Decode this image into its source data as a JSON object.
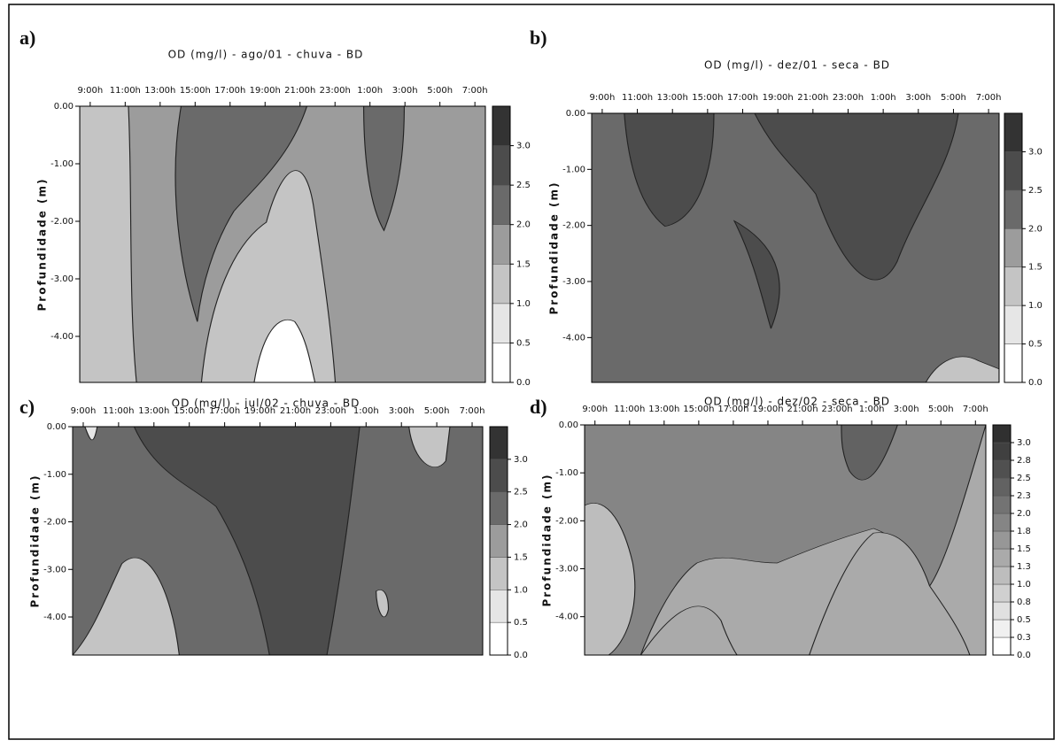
{
  "chart_data": [
    {
      "type": "contour",
      "label": "a)",
      "title": "OD (mg/l) - ago/01 - chuva - BD",
      "ylabel": "Profundidade (m)",
      "categories": [
        "9:00h",
        "11:00h",
        "13:00h",
        "15:00h",
        "17:00h",
        "19:00h",
        "21:00h",
        "23:00h",
        "1:00h",
        "3:00h",
        "5:00h",
        "7:00h"
      ],
      "ylim": [
        -4.8,
        0
      ],
      "yticks": [
        {
          "value": 0,
          "label": "0.00"
        },
        {
          "value": -1,
          "label": "-1.00"
        },
        {
          "value": -2,
          "label": "-2.00"
        },
        {
          "value": -3,
          "label": "-3.00"
        },
        {
          "value": -4,
          "label": "-4.00"
        }
      ],
      "colorbar": {
        "lim": [
          0,
          3.5
        ],
        "ticks": [
          {
            "value": 0,
            "label": "0.0"
          },
          0.5,
          {
            "value": 1,
            "label": "1.0"
          },
          1.5,
          {
            "value": 2,
            "label": "2.0"
          },
          2.5,
          {
            "value": 3,
            "label": "3.0"
          }
        ],
        "colors": [
          "#ffffff",
          "#e6e6e6",
          "#c4c4c4",
          "#9c9c9c",
          "#6a6a6a",
          "#4c4c4c",
          "#333333"
        ]
      }
    },
    {
      "type": "contour",
      "label": "b)",
      "title": "OD (mg/l)  - dez/01 - seca - BD",
      "ylabel": "Profundidade (m)",
      "categories": [
        "9:00h",
        "11:00h",
        "13:00h",
        "15:00h",
        "17:00h",
        "19:00h",
        "21:00h",
        "23:00h",
        "1:00h",
        "3:00h",
        "5:00h",
        "7:00h"
      ],
      "ylim": [
        -4.8,
        0
      ],
      "yticks": [
        {
          "value": 0,
          "label": "0.00"
        },
        {
          "value": -1,
          "label": "-1.00"
        },
        {
          "value": -2,
          "label": "-2.00"
        },
        {
          "value": -3,
          "label": "-3.00"
        },
        {
          "value": -4,
          "label": "-4.00"
        }
      ],
      "colorbar": {
        "lim": [
          0,
          3.5
        ],
        "ticks": [
          {
            "value": 0,
            "label": "0.0"
          },
          0.5,
          {
            "value": 1,
            "label": "1.0"
          },
          1.5,
          {
            "value": 2,
            "label": "2.0"
          },
          2.5,
          {
            "value": 3,
            "label": "3.0"
          }
        ],
        "colors": [
          "#ffffff",
          "#e6e6e6",
          "#c4c4c4",
          "#9c9c9c",
          "#6a6a6a",
          "#4c4c4c",
          "#333333"
        ]
      }
    },
    {
      "type": "contour",
      "label": "c)",
      "title": "OD (mg/l) - jul/02 - chuva - BD",
      "ylabel": "Profundidade (m)",
      "categories": [
        "9:00h",
        "11:00h",
        "13:00h",
        "15:00h",
        "17:00h",
        "19:00h",
        "21:00h",
        "23:00h",
        "1:00h",
        "3:00h",
        "5:00h",
        "7:00h"
      ],
      "ylim": [
        -4.8,
        0
      ],
      "yticks": [
        {
          "value": 0,
          "label": "0.00"
        },
        {
          "value": -1,
          "label": "-1.00"
        },
        {
          "value": -2,
          "label": "-2.00"
        },
        {
          "value": -3,
          "label": "-3.00"
        },
        {
          "value": -4,
          "label": "-4.00"
        }
      ],
      "colorbar": {
        "lim": [
          0,
          3.5
        ],
        "ticks": [
          {
            "value": 0,
            "label": "0.0"
          },
          0.5,
          {
            "value": 1,
            "label": "1.0"
          },
          1.5,
          {
            "value": 2,
            "label": "2.0"
          },
          2.5,
          {
            "value": 3,
            "label": "3.0"
          }
        ],
        "colors": [
          "#ffffff",
          "#e6e6e6",
          "#c4c4c4",
          "#9c9c9c",
          "#6a6a6a",
          "#4c4c4c",
          "#333333"
        ]
      }
    },
    {
      "type": "contour",
      "label": "d)",
      "title": "OD (mg/l) - dez/02 - seca - BD",
      "ylabel": "Profundidade (m)",
      "categories": [
        "9:00h",
        "11:00h",
        "13:00h",
        "15:00h",
        "17:00h",
        "19:00h",
        "21:00h",
        "23:00h",
        "1:00h",
        "3:00h",
        "5:00h",
        "7:00h"
      ],
      "ylim": [
        -4.8,
        0
      ],
      "yticks": [
        {
          "value": 0,
          "label": "0.00"
        },
        {
          "value": -1,
          "label": "-1.00"
        },
        {
          "value": -2,
          "label": "-2.00"
        },
        {
          "value": -3,
          "label": "-3.00"
        },
        {
          "value": -4,
          "label": "-4.00"
        }
      ],
      "colorbar": {
        "lim": [
          0,
          3.25
        ],
        "ticks": [
          {
            "value": 0,
            "label": "0.0"
          },
          {
            "value": 0.25,
            "label": "0.3"
          },
          0.5,
          {
            "value": 0.75,
            "label": "0.8"
          },
          {
            "value": 1,
            "label": "1.0"
          },
          {
            "value": 1.25,
            "label": "1.3"
          },
          1.5,
          {
            "value": 1.75,
            "label": "1.8"
          },
          {
            "value": 2,
            "label": "2.0"
          },
          {
            "value": 2.25,
            "label": "2.3"
          },
          2.5,
          {
            "value": 2.75,
            "label": "2.8"
          },
          {
            "value": 3,
            "label": "3.0"
          }
        ],
        "colors": [
          "#ffffff",
          "#f0f0f0",
          "#e0e0e0",
          "#d0d0d0",
          "#bdbdbd",
          "#aaaaaa",
          "#979797",
          "#858585",
          "#737373",
          "#626262",
          "#505050",
          "#404040",
          "#303030"
        ]
      }
    }
  ]
}
